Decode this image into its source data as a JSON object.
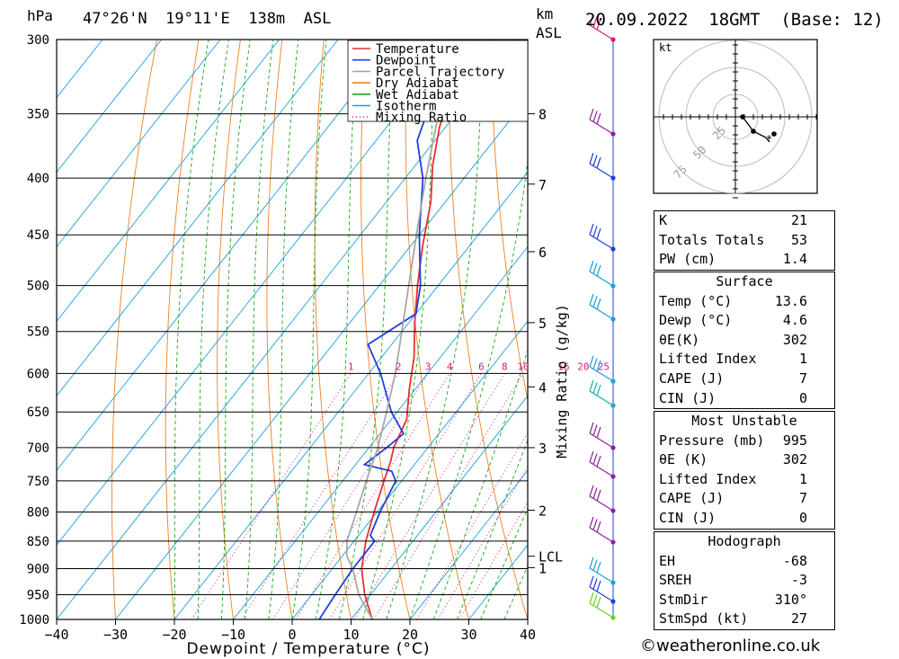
{
  "header": {
    "pressure_unit": "hPa",
    "location": "47°26'N  19°11'E  138m  ASL",
    "height_unit_km": "km",
    "height_unit_asl": "ASL",
    "datetime": "20.09.2022  18GMT  (Base: 12)"
  },
  "legend": [
    "Temperature",
    "Dewpoint",
    "Parcel Trajectory",
    "Dry Adiabat",
    "Wet Adiabat",
    "Isotherm",
    "Mixing Ratio"
  ],
  "colors": {
    "temperature": "#e8302f",
    "dewpoint": "#1f3fe0",
    "parcel": "#a8a8a8",
    "dry_adiabat": "#f08020",
    "wet_adiabat": "#1aa81a",
    "isotherm": "#1aa0e0",
    "mixing_ratio": "#d0207a"
  },
  "chart_data": {
    "type": "line",
    "title": "47°26'N  19°11'E  138m  ASL",
    "xlabel": "Dewpoint / Temperature (°C)",
    "ylabel": "hPa",
    "xlim": [
      -40,
      40
    ],
    "ylim": [
      1000,
      300
    ],
    "y_scale": "log-pressure",
    "x_ticks": [
      -40,
      -30,
      -20,
      -10,
      0,
      10,
      20,
      30,
      40
    ],
    "y_ticks": [
      300,
      350,
      400,
      450,
      500,
      550,
      600,
      650,
      700,
      750,
      800,
      850,
      900,
      950,
      1000
    ],
    "km_axis": {
      "label": "Mixing Ratio (g/kg)",
      "ticks": [
        {
          "label": "8",
          "p": 350
        },
        {
          "label": "7",
          "p": 405
        },
        {
          "label": "6",
          "p": 466
        },
        {
          "label": "5",
          "p": 540
        },
        {
          "label": "4",
          "p": 617
        },
        {
          "label": "3",
          "p": 700
        },
        {
          "label": "2",
          "p": 797
        },
        {
          "label": "LCL",
          "p": 877
        },
        {
          "label": "1",
          "p": 898
        }
      ]
    },
    "mixing_ratio_labels": [
      "1",
      "2",
      "3",
      "4",
      "6",
      "8",
      "10",
      "16",
      "20",
      "25"
    ],
    "mixing_ratio_values": [
      1,
      2,
      3,
      4,
      6,
      8,
      10,
      16,
      20,
      25
    ],
    "series": [
      {
        "name": "Temperature",
        "points": [
          [
            13.6,
            1000
          ],
          [
            9,
            950
          ],
          [
            5,
            900
          ],
          [
            2,
            850
          ],
          [
            -0.5,
            800
          ],
          [
            -3,
            750
          ],
          [
            -4.5,
            720
          ],
          [
            -5.8,
            700
          ],
          [
            -7.4,
            660
          ],
          [
            -11,
            620
          ],
          [
            -14.5,
            580
          ],
          [
            -19,
            540
          ],
          [
            -23.5,
            500
          ],
          [
            -28,
            460
          ],
          [
            -32.5,
            420
          ],
          [
            -37,
            390
          ],
          [
            -41,
            360
          ],
          [
            -44.5,
            330
          ],
          [
            -49,
            310
          ],
          [
            -48.5,
            300
          ]
        ]
      },
      {
        "name": "Dewpoint",
        "points": [
          [
            4.6,
            1000
          ],
          [
            4,
            950
          ],
          [
            3.5,
            900
          ],
          [
            3.5,
            850
          ],
          [
            2,
            840
          ],
          [
            0.5,
            800
          ],
          [
            -1,
            750
          ],
          [
            -3,
            735
          ],
          [
            -8.5,
            725
          ],
          [
            -7,
            700
          ],
          [
            -6,
            680
          ],
          [
            -11,
            650
          ],
          [
            -18,
            600
          ],
          [
            -24,
            565
          ],
          [
            -20,
            530
          ],
          [
            -23,
            500
          ],
          [
            -30,
            450
          ],
          [
            -37,
            400
          ],
          [
            -43,
            370
          ],
          [
            -45,
            350
          ],
          [
            -44,
            330
          ],
          [
            -47,
            300
          ]
        ]
      },
      {
        "name": "Parcel Trajectory",
        "points": [
          [
            13.6,
            1000
          ],
          [
            8,
            950
          ],
          [
            3.5,
            900
          ],
          [
            0.8,
            877
          ],
          [
            -1.2,
            850
          ],
          [
            -3.5,
            800
          ],
          [
            -6,
            750
          ],
          [
            -8.5,
            700
          ],
          [
            -11.8,
            650
          ],
          [
            -15.5,
            600
          ],
          [
            -20,
            550
          ],
          [
            -25,
            500
          ],
          [
            -30.5,
            450
          ],
          [
            -36.5,
            400
          ],
          [
            -43,
            350
          ],
          [
            -51,
            300
          ]
        ]
      }
    ]
  },
  "hodograph": {
    "unit": "kt",
    "ring_labels": [
      "25",
      "50",
      "75"
    ]
  },
  "indices": [
    {
      "label": "K",
      "value": "21"
    },
    {
      "label": "Totals Totals",
      "value": "53"
    },
    {
      "label": "PW (cm)",
      "value": "1.4"
    }
  ],
  "surface": {
    "title": "Surface",
    "rows": [
      {
        "label": "Temp (°C)",
        "value": "13.6"
      },
      {
        "label": "Dewp (°C)",
        "value": "4.6"
      },
      {
        "label": "θE(K)",
        "value": "302"
      },
      {
        "label": "Lifted Index",
        "value": "1"
      },
      {
        "label": "CAPE (J)",
        "value": "7"
      },
      {
        "label": "CIN (J)",
        "value": "0"
      }
    ]
  },
  "most_unstable": {
    "title": "Most Unstable",
    "rows": [
      {
        "label": "Pressure (mb)",
        "value": "995"
      },
      {
        "label": "θE (K)",
        "value": "302"
      },
      {
        "label": "Lifted Index",
        "value": "1"
      },
      {
        "label": "CAPE (J)",
        "value": "7"
      },
      {
        "label": "CIN (J)",
        "value": "0"
      }
    ]
  },
  "hodograph_table": {
    "title": "Hodograph",
    "rows": [
      {
        "label": "EH",
        "value": "-68"
      },
      {
        "label": "SREH",
        "value": "-3"
      },
      {
        "label": "StmDir",
        "value": "310°"
      },
      {
        "label": "StmSpd (kt)",
        "value": "27"
      }
    ]
  },
  "credit": "©weatheronline.co.uk"
}
